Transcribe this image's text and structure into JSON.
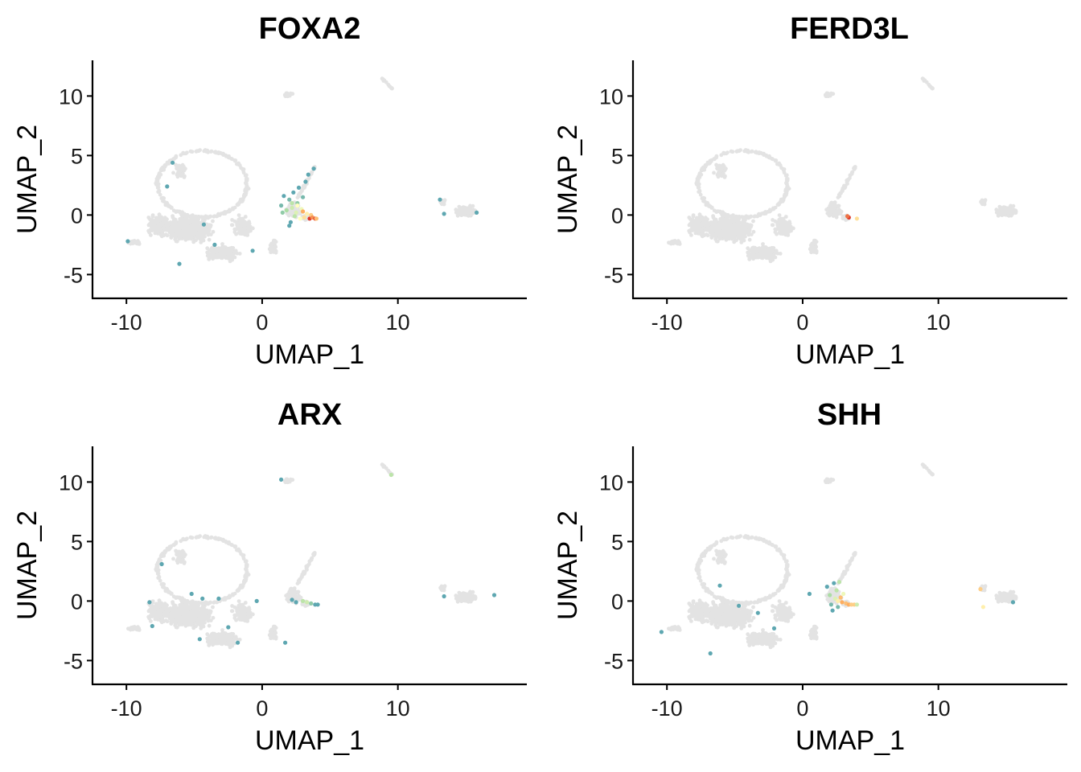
{
  "figure": {
    "panels": [
      {
        "title": "FOXA2",
        "xlabel": "UMAP_1",
        "ylabel": "UMAP_2"
      },
      {
        "title": "FERD3L",
        "xlabel": "UMAP_1",
        "ylabel": "UMAP_2"
      },
      {
        "title": "ARX",
        "xlabel": "UMAP_1",
        "ylabel": "UMAP_2"
      },
      {
        "title": "SHH",
        "xlabel": "UMAP_1",
        "ylabel": "UMAP_2"
      }
    ]
  },
  "chart_data": [
    {
      "type": "scatter",
      "title": "FOXA2",
      "xlabel": "UMAP_1",
      "ylabel": "UMAP_2",
      "xlim": [
        -12.5,
        19.5
      ],
      "ylim": [
        -7,
        13
      ],
      "xticks": [
        -10,
        0,
        10
      ],
      "xtick_labels": [
        "-10",
        "0",
        "10"
      ],
      "yticks": [
        -5,
        0,
        5,
        10
      ],
      "ytick_labels": [
        "-5",
        "0",
        "5",
        "10"
      ],
      "background_color": "#e3e3e3",
      "grid": false,
      "legend": "none",
      "points": [
        [
          -6.6,
          4.4,
          0.1
        ],
        [
          -7.0,
          2.4,
          0.1
        ],
        [
          -4.3,
          -0.8,
          0.1
        ],
        [
          -3.5,
          -2.5,
          0.1
        ],
        [
          -9.9,
          -2.2,
          0.1
        ],
        [
          -6.1,
          -4.1,
          0.1
        ],
        [
          -0.7,
          -3.0,
          0.1
        ],
        [
          1.4,
          0.8,
          0.15
        ],
        [
          1.6,
          1.6,
          0.1
        ],
        [
          1.8,
          0.4,
          0.25
        ],
        [
          2.0,
          1.3,
          0.15
        ],
        [
          2.2,
          0.6,
          0.35
        ],
        [
          2.3,
          1.9,
          0.1
        ],
        [
          2.5,
          0.2,
          0.4
        ],
        [
          2.6,
          1.0,
          0.2
        ],
        [
          2.7,
          2.3,
          0.1
        ],
        [
          2.8,
          -0.3,
          0.5
        ],
        [
          2.9,
          0.5,
          0.45
        ],
        [
          3.0,
          1.5,
          0.15
        ],
        [
          3.1,
          -0.2,
          0.6
        ],
        [
          3.2,
          2.8,
          0.1
        ],
        [
          3.3,
          0.1,
          0.55
        ],
        [
          3.4,
          3.4,
          0.1
        ],
        [
          3.5,
          -0.3,
          0.95
        ],
        [
          3.6,
          0.0,
          0.65
        ],
        [
          3.7,
          -0.2,
          0.8
        ],
        [
          3.8,
          3.9,
          0.1
        ],
        [
          3.9,
          -0.3,
          0.9
        ],
        [
          4.0,
          -0.3,
          0.7
        ],
        [
          2.4,
          -0.1,
          0.3
        ],
        [
          2.1,
          -0.6,
          0.1
        ],
        [
          2.0,
          -0.9,
          0.1
        ],
        [
          1.5,
          0.2,
          0.2
        ],
        [
          2.6,
          0.8,
          0.5
        ],
        [
          3.0,
          0.3,
          0.75
        ],
        [
          2.2,
          1.0,
          0.3
        ],
        [
          13.1,
          1.3,
          0.1
        ],
        [
          13.4,
          0.1,
          0.1
        ],
        [
          15.8,
          0.2,
          0.1
        ]
      ]
    },
    {
      "type": "scatter",
      "title": "FERD3L",
      "xlabel": "UMAP_1",
      "ylabel": "UMAP_2",
      "xlim": [
        -12.5,
        19.5
      ],
      "ylim": [
        -7,
        13
      ],
      "xticks": [
        -10,
        0,
        10
      ],
      "xtick_labels": [
        "-10",
        "0",
        "10"
      ],
      "yticks": [
        -5,
        0,
        5,
        10
      ],
      "ytick_labels": [
        "-5",
        "0",
        "5",
        "10"
      ],
      "background_color": "#e3e3e3",
      "grid": false,
      "legend": "none",
      "points": [
        [
          3.4,
          -0.2,
          0.95
        ],
        [
          3.3,
          -0.1,
          0.85
        ],
        [
          4.0,
          -0.3,
          0.6
        ]
      ]
    },
    {
      "type": "scatter",
      "title": "ARX",
      "xlabel": "UMAP_1",
      "ylabel": "UMAP_2",
      "xlim": [
        -12.5,
        19.5
      ],
      "ylim": [
        -7,
        13
      ],
      "xticks": [
        -10,
        0,
        10
      ],
      "xtick_labels": [
        "-10",
        "0",
        "10"
      ],
      "yticks": [
        -5,
        0,
        5,
        10
      ],
      "ytick_labels": [
        "-5",
        "0",
        "5",
        "10"
      ],
      "background_color": "#e3e3e3",
      "grid": false,
      "legend": "none",
      "points": [
        [
          9.5,
          10.6,
          0.3
        ],
        [
          1.4,
          10.2,
          0.1
        ],
        [
          -8.3,
          -0.1,
          0.1
        ],
        [
          -8.1,
          -2.1,
          0.1
        ],
        [
          -7.4,
          3.1,
          0.1
        ],
        [
          -5.2,
          0.6,
          0.1
        ],
        [
          -4.4,
          0.2,
          0.1
        ],
        [
          -3.2,
          0.2,
          0.1
        ],
        [
          -2.5,
          -2.2,
          0.1
        ],
        [
          -1.8,
          -3.5,
          0.1
        ],
        [
          -0.4,
          0.0,
          0.1
        ],
        [
          -4.6,
          -3.2,
          0.1
        ],
        [
          1.7,
          -3.5,
          0.1
        ],
        [
          2.2,
          0.1,
          0.1
        ],
        [
          2.5,
          -0.1,
          0.1
        ],
        [
          3.0,
          0.0,
          0.3
        ],
        [
          3.3,
          -0.1,
          0.35
        ],
        [
          3.6,
          -0.2,
          0.2
        ],
        [
          3.9,
          -0.3,
          0.1
        ],
        [
          4.1,
          -0.3,
          0.1
        ],
        [
          13.4,
          0.4,
          0.1
        ],
        [
          17.1,
          0.5,
          0.1
        ]
      ]
    },
    {
      "type": "scatter",
      "title": "SHH",
      "xlabel": "UMAP_1",
      "ylabel": "UMAP_2",
      "xlim": [
        -12.5,
        19.5
      ],
      "ylim": [
        -7,
        13
      ],
      "xticks": [
        -10,
        0,
        10
      ],
      "xtick_labels": [
        "-10",
        "0",
        "10"
      ],
      "yticks": [
        -5,
        0,
        5,
        10
      ],
      "ytick_labels": [
        "-5",
        "0",
        "5",
        "10"
      ],
      "background_color": "#e3e3e3",
      "grid": false,
      "legend": "none",
      "points": [
        [
          -6.8,
          -4.4,
          0.1
        ],
        [
          -6.1,
          1.3,
          0.1
        ],
        [
          -10.4,
          -2.6,
          0.1
        ],
        [
          -4.7,
          -0.4,
          0.1
        ],
        [
          -3.3,
          -1.0,
          0.1
        ],
        [
          -2.1,
          -2.3,
          0.1
        ],
        [
          0.5,
          0.6,
          0.1
        ],
        [
          1.8,
          1.2,
          0.1
        ],
        [
          2.0,
          0.5,
          0.25
        ],
        [
          2.1,
          -0.3,
          0.15
        ],
        [
          2.3,
          1.5,
          0.1
        ],
        [
          2.4,
          0.2,
          0.4
        ],
        [
          2.5,
          0.9,
          0.3
        ],
        [
          2.6,
          -0.5,
          0.15
        ],
        [
          2.7,
          1.6,
          0.3
        ],
        [
          2.8,
          0.3,
          0.7
        ],
        [
          2.9,
          -0.1,
          0.75
        ],
        [
          3.0,
          0.6,
          0.45
        ],
        [
          3.2,
          -0.2,
          0.7
        ],
        [
          3.4,
          -0.3,
          0.75
        ],
        [
          3.6,
          -0.3,
          0.65
        ],
        [
          3.8,
          -0.3,
          0.65
        ],
        [
          4.0,
          -0.3,
          0.35
        ],
        [
          2.2,
          -0.8,
          0.1
        ],
        [
          2.6,
          0.0,
          0.55
        ],
        [
          13.1,
          1.0,
          0.65
        ],
        [
          13.3,
          -0.5,
          0.55
        ],
        [
          15.5,
          -0.1,
          0.1
        ]
      ]
    }
  ]
}
